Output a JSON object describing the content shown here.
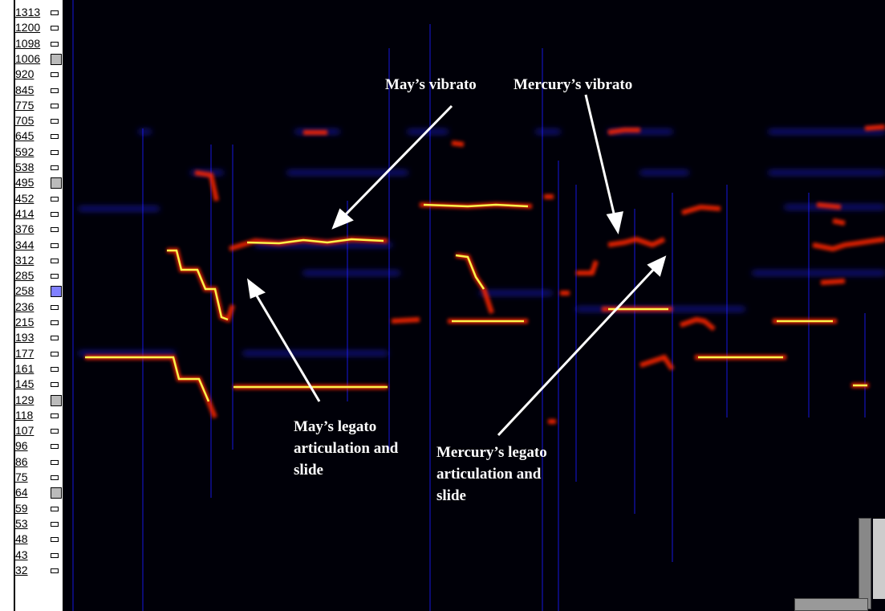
{
  "window": {
    "title": ""
  },
  "ruler": {
    "ticks": [
      {
        "label": "1313",
        "mark": "plain"
      },
      {
        "label": "1200",
        "mark": "plain"
      },
      {
        "label": "1098",
        "mark": "plain"
      },
      {
        "label": "1006",
        "mark": "gray"
      },
      {
        "label": "920",
        "mark": "plain"
      },
      {
        "label": "845",
        "mark": "plain"
      },
      {
        "label": "775",
        "mark": "plain"
      },
      {
        "label": "705",
        "mark": "plain"
      },
      {
        "label": "645",
        "mark": "plain"
      },
      {
        "label": "592",
        "mark": "plain"
      },
      {
        "label": "538",
        "mark": "plain"
      },
      {
        "label": "495",
        "mark": "gray"
      },
      {
        "label": "452",
        "mark": "plain"
      },
      {
        "label": "414",
        "mark": "plain"
      },
      {
        "label": "376",
        "mark": "plain"
      },
      {
        "label": "344",
        "mark": "plain"
      },
      {
        "label": "312",
        "mark": "plain"
      },
      {
        "label": "285",
        "mark": "plain"
      },
      {
        "label": "258",
        "mark": "blue"
      },
      {
        "label": "236",
        "mark": "plain"
      },
      {
        "label": "215",
        "mark": "plain"
      },
      {
        "label": "193",
        "mark": "plain"
      },
      {
        "label": "177",
        "mark": "plain"
      },
      {
        "label": "161",
        "mark": "plain"
      },
      {
        "label": "145",
        "mark": "plain"
      },
      {
        "label": "129",
        "mark": "gray"
      },
      {
        "label": "118",
        "mark": "plain"
      },
      {
        "label": "107",
        "mark": "plain"
      },
      {
        "label": "96",
        "mark": "plain"
      },
      {
        "label": "86",
        "mark": "plain"
      },
      {
        "label": "75",
        "mark": "plain"
      },
      {
        "label": "64",
        "mark": "gray"
      },
      {
        "label": "59",
        "mark": "plain"
      },
      {
        "label": "53",
        "mark": "plain"
      },
      {
        "label": "48",
        "mark": "plain"
      },
      {
        "label": "43",
        "mark": "plain"
      },
      {
        "label": "32",
        "mark": "plain"
      }
    ]
  },
  "annotations": {
    "may_vibrato": "May’s vibrato",
    "mercury_vibrato": "Mercury’s vibrato",
    "may_legato": "May’s legato\narticulation and\nslide",
    "mercury_legato": "Mercury’s legato\narticulation and\nslide"
  },
  "colors": {
    "background": "#000000",
    "trace_hot": "#ffff40",
    "trace_mid": "#ff3000",
    "trace_cool": "#2020ff",
    "annotation": "#ffffff"
  }
}
